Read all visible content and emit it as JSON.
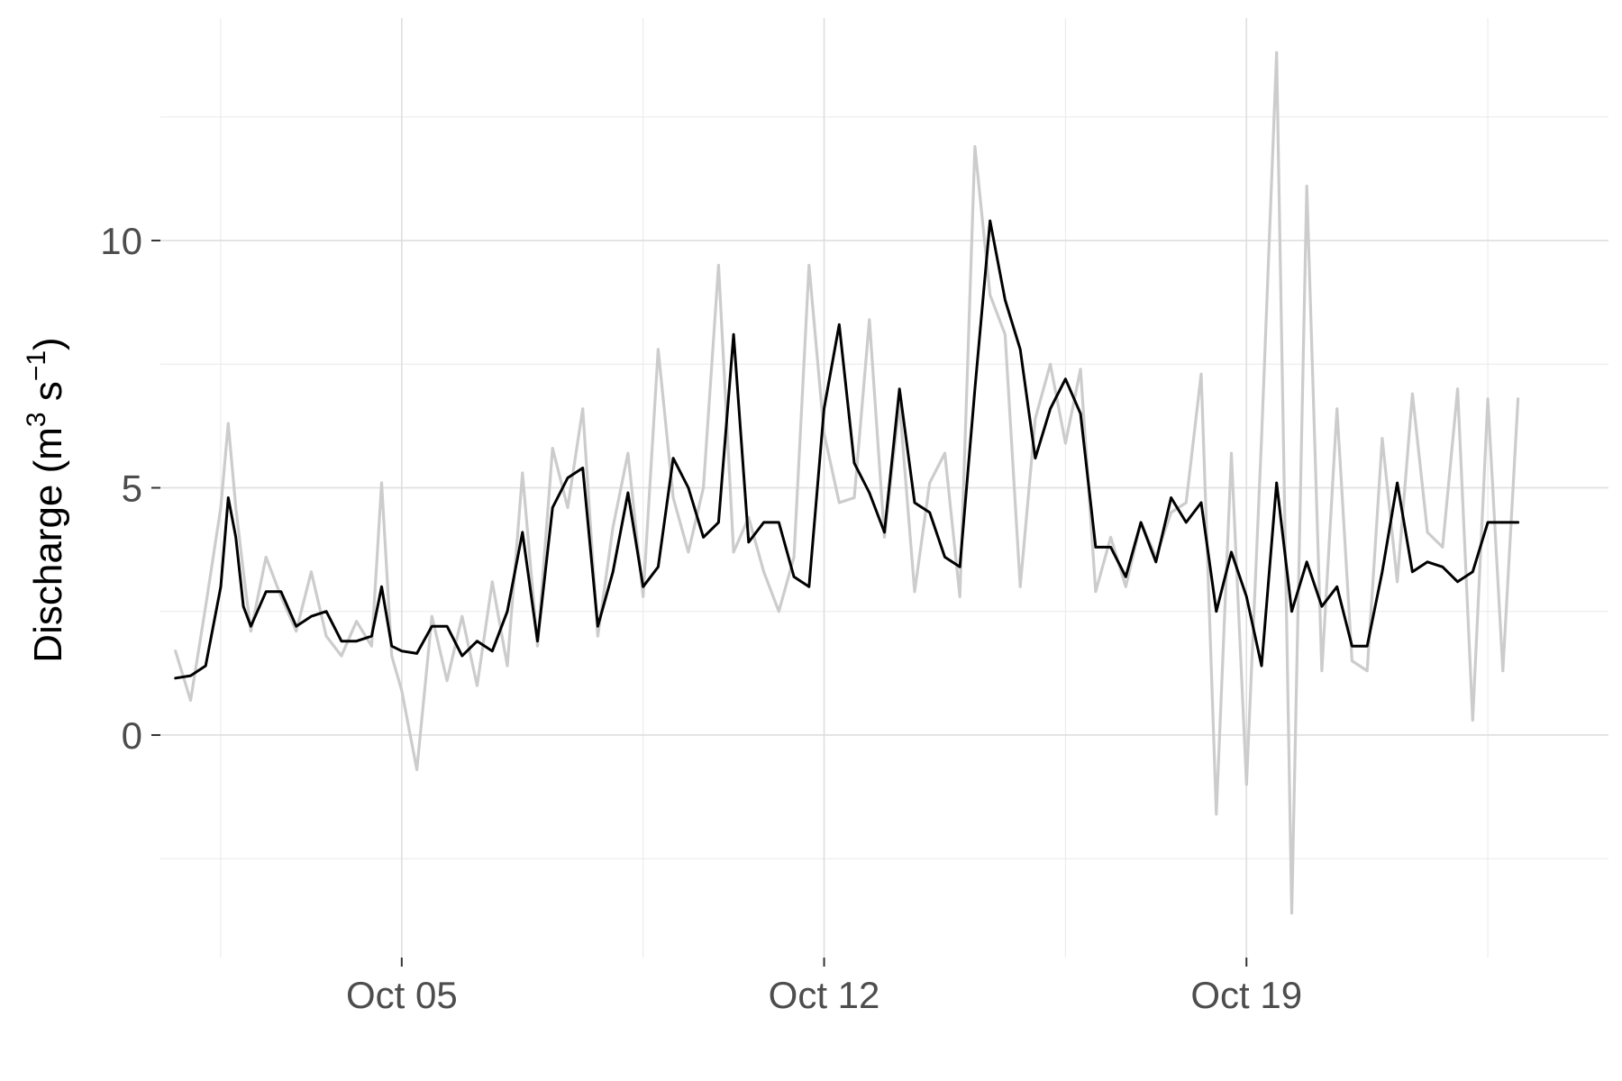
{
  "chart_data": {
    "type": "line",
    "title": "",
    "xlabel": "",
    "ylabel": {
      "base": "Discharge (m",
      "exp1": "3",
      "mid": " s",
      "exp2": "−1",
      "end": ")"
    },
    "xlim": [
      "2023-10-01",
      "2023-10-25"
    ],
    "ylim": [
      -4.5,
      14.5
    ],
    "grid": true,
    "legend": "none",
    "x_ticks": [
      {
        "date": "2023-10-05",
        "label": "Oct 05"
      },
      {
        "date": "2023-10-12",
        "label": "Oct 12"
      },
      {
        "date": "2023-10-19",
        "label": "Oct 19"
      }
    ],
    "x_minor": [
      "2023-10-02",
      "2023-10-09",
      "2023-10-16",
      "2023-10-23"
    ],
    "y_ticks": [
      0,
      5,
      10
    ],
    "y_minor": [
      -2.5,
      2.5,
      7.5,
      12.5
    ],
    "series": [
      {
        "color": "#cccccc",
        "style": "raw",
        "x": [
          "2023-10-01T06:00",
          "2023-10-01T12:00",
          "2023-10-01T18:00",
          "2023-10-02T00:00",
          "2023-10-02T03:00",
          "2023-10-02T06:00",
          "2023-10-02T09:00",
          "2023-10-02T12:00",
          "2023-10-02T18:00",
          "2023-10-03T00:00",
          "2023-10-03T06:00",
          "2023-10-03T12:00",
          "2023-10-03T18:00",
          "2023-10-04T00:00",
          "2023-10-04T06:00",
          "2023-10-04T12:00",
          "2023-10-04T16:00",
          "2023-10-04T20:00",
          "2023-10-05T00:00",
          "2023-10-05T06:00",
          "2023-10-05T12:00",
          "2023-10-05T18:00",
          "2023-10-06T00:00",
          "2023-10-06T06:00",
          "2023-10-06T12:00",
          "2023-10-06T18:00",
          "2023-10-07T00:00",
          "2023-10-07T06:00",
          "2023-10-07T12:00",
          "2023-10-07T18:00",
          "2023-10-08T00:00",
          "2023-10-08T06:00",
          "2023-10-08T12:00",
          "2023-10-08T18:00",
          "2023-10-09T00:00",
          "2023-10-09T06:00",
          "2023-10-09T12:00",
          "2023-10-09T18:00",
          "2023-10-10T00:00",
          "2023-10-10T06:00",
          "2023-10-10T12:00",
          "2023-10-10T18:00",
          "2023-10-11T00:00",
          "2023-10-11T06:00",
          "2023-10-11T12:00",
          "2023-10-11T18:00",
          "2023-10-12T00:00",
          "2023-10-12T06:00",
          "2023-10-12T12:00",
          "2023-10-12T18:00",
          "2023-10-13T00:00",
          "2023-10-13T06:00",
          "2023-10-13T12:00",
          "2023-10-13T18:00",
          "2023-10-14T00:00",
          "2023-10-14T06:00",
          "2023-10-14T12:00",
          "2023-10-14T18:00",
          "2023-10-15T00:00",
          "2023-10-15T06:00",
          "2023-10-15T12:00",
          "2023-10-15T18:00",
          "2023-10-16T00:00",
          "2023-10-16T06:00",
          "2023-10-16T12:00",
          "2023-10-16T18:00",
          "2023-10-17T00:00",
          "2023-10-17T06:00",
          "2023-10-17T12:00",
          "2023-10-17T18:00",
          "2023-10-18T00:00",
          "2023-10-18T06:00",
          "2023-10-18T12:00",
          "2023-10-18T18:00",
          "2023-10-19T00:00",
          "2023-10-19T06:00",
          "2023-10-19T12:00",
          "2023-10-19T18:00",
          "2023-10-20T00:00",
          "2023-10-20T06:00",
          "2023-10-20T12:00",
          "2023-10-20T18:00",
          "2023-10-21T00:00",
          "2023-10-21T06:00",
          "2023-10-21T12:00",
          "2023-10-21T18:00",
          "2023-10-22T00:00",
          "2023-10-22T06:00",
          "2023-10-22T12:00",
          "2023-10-22T18:00",
          "2023-10-23T00:00",
          "2023-10-23T06:00",
          "2023-10-23T12:00"
        ],
        "y": [
          1.7,
          0.7,
          2.6,
          4.6,
          6.3,
          4.6,
          3.3,
          2.1,
          3.6,
          2.8,
          2.1,
          3.3,
          2.0,
          1.6,
          2.3,
          1.8,
          5.1,
          1.6,
          0.9,
          -0.7,
          2.4,
          1.1,
          2.4,
          1.0,
          3.1,
          1.4,
          5.3,
          1.8,
          5.8,
          4.6,
          6.6,
          2.0,
          4.2,
          5.7,
          2.8,
          7.8,
          4.8,
          3.7,
          5.0,
          9.5,
          3.7,
          4.4,
          3.3,
          2.5,
          3.6,
          9.5,
          6.1,
          4.7,
          4.8,
          8.4,
          4.0,
          6.7,
          2.9,
          5.1,
          5.7,
          2.8,
          11.9,
          8.9,
          8.1,
          3.0,
          6.4,
          7.5,
          5.9,
          7.4,
          2.9,
          4.0,
          3.0,
          4.3,
          3.6,
          4.5,
          4.7,
          7.3,
          -1.6,
          5.7,
          -1.0,
          6.0,
          13.8,
          -3.6,
          11.1,
          1.3,
          6.6,
          1.5,
          1.3,
          6.0,
          3.1,
          6.9,
          4.1,
          3.8,
          7.0,
          0.3,
          6.8,
          1.3,
          6.8
        ]
      },
      {
        "color": "#000000",
        "style": "smoothed",
        "x": [
          "2023-10-01T06:00",
          "2023-10-01T12:00",
          "2023-10-01T18:00",
          "2023-10-02T00:00",
          "2023-10-02T03:00",
          "2023-10-02T06:00",
          "2023-10-02T09:00",
          "2023-10-02T12:00",
          "2023-10-02T18:00",
          "2023-10-03T00:00",
          "2023-10-03T06:00",
          "2023-10-03T12:00",
          "2023-10-03T18:00",
          "2023-10-04T00:00",
          "2023-10-04T06:00",
          "2023-10-04T12:00",
          "2023-10-04T16:00",
          "2023-10-04T20:00",
          "2023-10-05T00:00",
          "2023-10-05T06:00",
          "2023-10-05T12:00",
          "2023-10-05T18:00",
          "2023-10-06T00:00",
          "2023-10-06T06:00",
          "2023-10-06T12:00",
          "2023-10-06T18:00",
          "2023-10-07T00:00",
          "2023-10-07T06:00",
          "2023-10-07T12:00",
          "2023-10-07T18:00",
          "2023-10-08T00:00",
          "2023-10-08T06:00",
          "2023-10-08T12:00",
          "2023-10-08T18:00",
          "2023-10-09T00:00",
          "2023-10-09T06:00",
          "2023-10-09T12:00",
          "2023-10-09T18:00",
          "2023-10-10T00:00",
          "2023-10-10T06:00",
          "2023-10-10T12:00",
          "2023-10-10T18:00",
          "2023-10-11T00:00",
          "2023-10-11T06:00",
          "2023-10-11T12:00",
          "2023-10-11T18:00",
          "2023-10-12T00:00",
          "2023-10-12T06:00",
          "2023-10-12T12:00",
          "2023-10-12T18:00",
          "2023-10-13T00:00",
          "2023-10-13T06:00",
          "2023-10-13T12:00",
          "2023-10-13T18:00",
          "2023-10-14T00:00",
          "2023-10-14T06:00",
          "2023-10-14T12:00",
          "2023-10-14T18:00",
          "2023-10-15T00:00",
          "2023-10-15T06:00",
          "2023-10-15T12:00",
          "2023-10-15T18:00",
          "2023-10-16T00:00",
          "2023-10-16T06:00",
          "2023-10-16T12:00",
          "2023-10-16T18:00",
          "2023-10-17T00:00",
          "2023-10-17T06:00",
          "2023-10-17T12:00",
          "2023-10-17T18:00",
          "2023-10-18T00:00",
          "2023-10-18T06:00",
          "2023-10-18T12:00",
          "2023-10-18T18:00",
          "2023-10-19T00:00",
          "2023-10-19T06:00",
          "2023-10-19T12:00",
          "2023-10-19T18:00",
          "2023-10-20T00:00",
          "2023-10-20T06:00",
          "2023-10-20T12:00",
          "2023-10-20T18:00",
          "2023-10-21T00:00",
          "2023-10-21T06:00",
          "2023-10-21T12:00",
          "2023-10-21T18:00",
          "2023-10-22T00:00",
          "2023-10-22T06:00",
          "2023-10-22T12:00",
          "2023-10-22T18:00",
          "2023-10-23T00:00",
          "2023-10-23T06:00",
          "2023-10-23T12:00"
        ],
        "y": [
          1.15,
          1.2,
          1.4,
          3.0,
          4.8,
          4.0,
          2.6,
          2.2,
          2.9,
          2.9,
          2.2,
          2.4,
          2.5,
          1.9,
          1.9,
          2.0,
          3.0,
          1.8,
          1.7,
          1.65,
          2.2,
          2.2,
          1.6,
          1.9,
          1.7,
          2.5,
          4.1,
          1.9,
          4.6,
          5.2,
          5.4,
          2.2,
          3.3,
          4.9,
          3.0,
          3.4,
          5.6,
          5.0,
          4.0,
          4.3,
          8.1,
          3.9,
          4.3,
          4.3,
          3.2,
          3.0,
          6.6,
          8.3,
          5.5,
          4.9,
          4.1,
          7.0,
          4.7,
          4.5,
          3.6,
          3.4,
          7.0,
          10.4,
          8.8,
          7.8,
          5.6,
          6.6,
          7.2,
          6.5,
          3.8,
          3.8,
          3.2,
          4.3,
          3.5,
          4.8,
          4.3,
          4.7,
          2.5,
          3.7,
          2.8,
          1.4,
          5.1,
          2.5,
          3.5,
          2.6,
          3.0,
          1.8,
          1.8,
          3.3,
          5.1,
          3.3,
          3.5,
          3.4,
          3.1,
          3.3,
          4.3,
          4.3,
          4.3
        ]
      }
    ]
  }
}
